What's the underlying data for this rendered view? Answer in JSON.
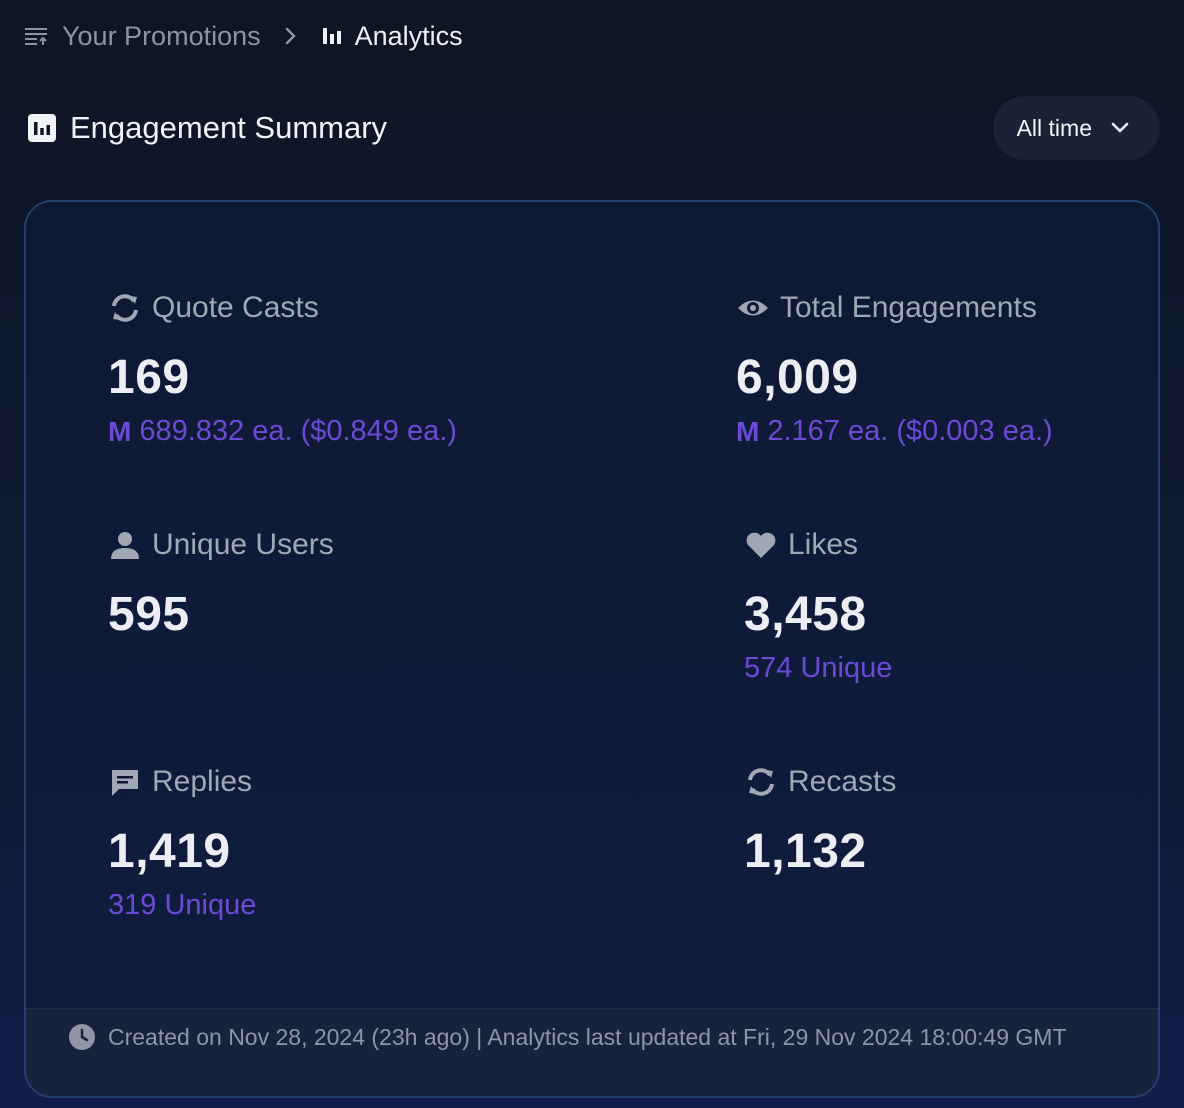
{
  "breadcrumb": {
    "parent": "Your Promotions",
    "current": "Analytics"
  },
  "section": {
    "title": "Engagement Summary",
    "range": "All time"
  },
  "stats": {
    "quote_casts": {
      "label": "Quote Casts",
      "value": "169",
      "token_symbol": "M",
      "sub": "689.832 ea. ($0.849 ea.)"
    },
    "total_engagements": {
      "label": "Total Engagements",
      "value": "6,009",
      "token_symbol": "M",
      "sub": "2.167 ea. ($0.003 ea.)"
    },
    "unique_users": {
      "label": "Unique Users",
      "value": "595"
    },
    "likes": {
      "label": "Likes",
      "value": "3,458",
      "sub": "574 Unique"
    },
    "replies": {
      "label": "Replies",
      "value": "1,419",
      "sub": "319 Unique"
    },
    "recasts": {
      "label": "Recasts",
      "value": "1,132"
    }
  },
  "footer": {
    "text": "Created on Nov 28, 2024 (23h ago) | Analytics last updated at Fri, 29 Nov 2024 18:00:49 GMT"
  },
  "icons": {
    "breadcrumb_parent": "list-icon",
    "breadcrumb_current": "bar-chart-icon",
    "section": "chart-box-icon",
    "quote_casts": "refresh-icon",
    "total_engagements": "eye-icon",
    "unique_users": "person-icon",
    "likes": "heart-icon",
    "replies": "chat-bubble-icon",
    "recasts": "refresh-icon",
    "footer": "clock-icon"
  },
  "colors": {
    "accent_purple": "#6b4bd6",
    "label_gray": "#a2a7b4",
    "card_border": "#25406e"
  }
}
